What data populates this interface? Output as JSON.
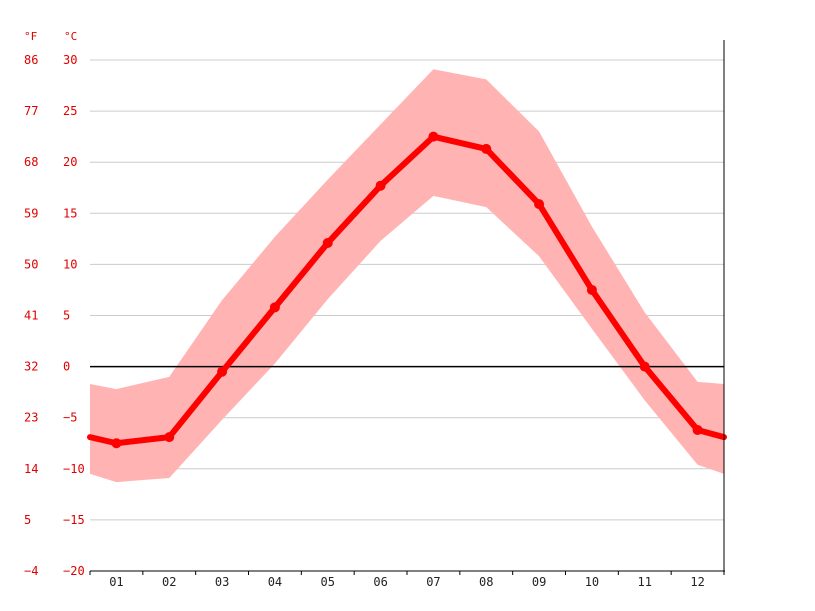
{
  "chart_data": {
    "type": "line",
    "title": "",
    "units": {
      "fahrenheit": "°F",
      "celsius": "°C"
    },
    "categories": [
      "01",
      "02",
      "03",
      "04",
      "05",
      "06",
      "07",
      "08",
      "09",
      "10",
      "11",
      "12"
    ],
    "y_ticks_celsius": [
      "30",
      "25",
      "20",
      "15",
      "10",
      "5",
      "0",
      "-5",
      "-10",
      "-15",
      "-20"
    ],
    "y_ticks_fahrenheit": [
      "86",
      "77",
      "68",
      "59",
      "50",
      "41",
      "32",
      "23",
      "14",
      "5",
      "-4"
    ],
    "ylim": [
      -20,
      30
    ],
    "grid": true,
    "zero_line": true,
    "series": [
      {
        "values": [
          -7.5,
          -6.9,
          -0.5,
          5.8,
          12.1,
          17.7,
          22.5,
          21.3,
          15.9,
          7.5,
          0.0,
          -6.2
        ]
      }
    ],
    "range_band": {
      "upper": [
        -2.2,
        -1.0,
        6.5,
        12.7,
        18.3,
        23.7,
        29.1,
        28.1,
        23.0,
        13.7,
        5.3,
        -1.5
      ],
      "lower": [
        -11.3,
        -10.9,
        -5.2,
        0.3,
        6.6,
        12.3,
        16.7,
        15.6,
        10.8,
        3.7,
        -3.3,
        -9.6
      ]
    },
    "edge_values": {
      "left": {
        "mean": -6.9,
        "upper": -1.7,
        "lower": -10.5
      },
      "right": {
        "mean": -6.9,
        "upper": -1.7,
        "lower": -10.5
      }
    },
    "colors": {
      "line": "#ff0000",
      "band": "#ffb3b3",
      "grid": "#cccccc",
      "zero": "#000000",
      "axis_text": "#e00000"
    }
  }
}
